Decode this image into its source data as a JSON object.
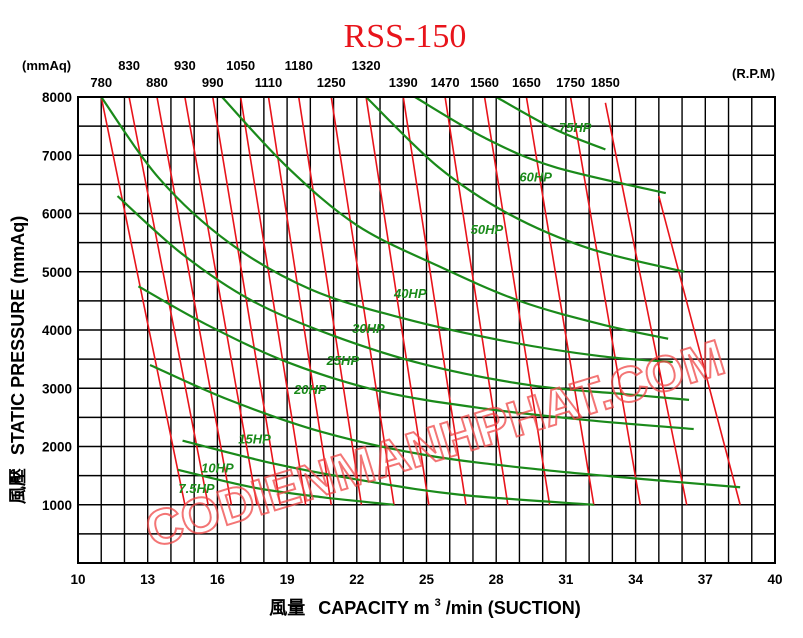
{
  "chart_data": {
    "type": "line",
    "title": "RSS-150",
    "xlabel": "風量 CAPACITY m³/min (SUCTION)",
    "xlabel_parts": {
      "cjk": "風量",
      "prefix": "CAPACITY  m",
      "sup": "3",
      "suffix": "/min (SUCTION)"
    },
    "ylabel": "風壓 STATIC PRESSURE (mmAq)",
    "ylabel_parts": {
      "cjk": "風壓",
      "text": "STATIC  PRESSURE  (mmAq)"
    },
    "y_unit_top": "(mmAq)",
    "rpm_unit": "(R.P.M)",
    "xlim": [
      10,
      40
    ],
    "ylim": [
      0,
      8000
    ],
    "x_ticks": [
      10,
      13,
      16,
      19,
      22,
      25,
      28,
      31,
      34,
      37,
      40
    ],
    "y_ticks": [
      1000,
      2000,
      3000,
      4000,
      5000,
      6000,
      7000,
      8000
    ],
    "grid": true,
    "rpm_series": [
      {
        "name": "780",
        "row": "lower",
        "points": [
          [
            11.0,
            8000
          ],
          [
            14.6,
            1000
          ]
        ]
      },
      {
        "name": "830",
        "row": "upper",
        "points": [
          [
            12.2,
            8000
          ],
          [
            15.6,
            1000
          ]
        ]
      },
      {
        "name": "880",
        "row": "lower",
        "points": [
          [
            13.4,
            8000
          ],
          [
            16.6,
            1000
          ]
        ]
      },
      {
        "name": "930",
        "row": "upper",
        "points": [
          [
            14.6,
            8000
          ],
          [
            17.7,
            1000
          ]
        ]
      },
      {
        "name": "990",
        "row": "lower",
        "points": [
          [
            15.8,
            8000
          ],
          [
            18.7,
            1000
          ]
        ]
      },
      {
        "name": "1050",
        "row": "upper",
        "points": [
          [
            17.0,
            8000
          ],
          [
            19.8,
            1000
          ]
        ]
      },
      {
        "name": "1110",
        "row": "lower",
        "points": [
          [
            18.2,
            8000
          ],
          [
            20.9,
            1000
          ]
        ]
      },
      {
        "name": "1180",
        "row": "upper",
        "points": [
          [
            19.5,
            8000
          ],
          [
            22.2,
            1000
          ]
        ]
      },
      {
        "name": "1250",
        "row": "lower",
        "points": [
          [
            20.9,
            8000
          ],
          [
            23.6,
            1000
          ]
        ]
      },
      {
        "name": "1320",
        "row": "upper",
        "points": [
          [
            22.4,
            8000
          ],
          [
            25.1,
            1000
          ]
        ]
      },
      {
        "name": "1390",
        "row": "lower",
        "points": [
          [
            24.0,
            8000
          ],
          [
            26.7,
            1000
          ]
        ]
      },
      {
        "name": "1470",
        "row": "lower",
        "points": [
          [
            25.8,
            8000
          ],
          [
            28.5,
            1000
          ]
        ]
      },
      {
        "name": "1560",
        "row": "lower",
        "points": [
          [
            27.5,
            8000
          ],
          [
            30.3,
            1000
          ]
        ]
      },
      {
        "name": "1650",
        "row": "lower",
        "points": [
          [
            29.3,
            8000
          ],
          [
            32.2,
            1000
          ]
        ]
      },
      {
        "name": "1750",
        "row": "lower",
        "points": [
          [
            31.2,
            8000
          ],
          [
            34.2,
            1000
          ]
        ]
      },
      {
        "name": "1850",
        "row": "lower",
        "points": [
          [
            32.7,
            7900
          ],
          [
            36.2,
            1000
          ]
        ]
      }
    ],
    "rpm_extra_lines": [
      {
        "points": [
          [
            35.0,
            6300
          ],
          [
            38.5,
            1000
          ]
        ]
      }
    ],
    "hp_series": [
      {
        "name": "7.5HP",
        "label_at": [
          15.1,
          1200
        ],
        "points": [
          [
            14.3,
            1600
          ],
          [
            17.5,
            1300
          ],
          [
            20.5,
            1130
          ],
          [
            23.6,
            1000
          ]
        ]
      },
      {
        "name": "10HP",
        "label_at": [
          16.0,
          1550
        ],
        "points": [
          [
            14.5,
            2100
          ],
          [
            18.5,
            1700
          ],
          [
            22.5,
            1400
          ],
          [
            26.5,
            1170
          ],
          [
            32.2,
            1000
          ]
        ]
      },
      {
        "name": "15HP",
        "label_at": [
          17.6,
          2050
        ],
        "points": [
          [
            13.1,
            3400
          ],
          [
            16.5,
            2800
          ],
          [
            20.5,
            2250
          ],
          [
            25.0,
            1850
          ],
          [
            30.0,
            1600
          ],
          [
            35.5,
            1400
          ],
          [
            38.5,
            1300
          ]
        ]
      },
      {
        "name": "20HP",
        "label_at": [
          20.0,
          2900
        ],
        "points": [
          [
            12.6,
            4750
          ],
          [
            15.5,
            4100
          ],
          [
            19.0,
            3450
          ],
          [
            23.0,
            2950
          ],
          [
            27.5,
            2650
          ],
          [
            32.0,
            2450
          ],
          [
            36.5,
            2300
          ]
        ]
      },
      {
        "name": "25HP",
        "label_at": [
          21.4,
          3400
        ],
        "points": [
          [
            11.7,
            6300
          ],
          [
            14.5,
            5300
          ],
          [
            17.5,
            4500
          ],
          [
            21.0,
            3900
          ],
          [
            25.0,
            3400
          ],
          [
            29.5,
            3050
          ],
          [
            33.5,
            2900
          ],
          [
            36.3,
            2800
          ]
        ]
      },
      {
        "name": "30HP",
        "label_at": [
          22.5,
          3950
        ],
        "points": [
          [
            11.0,
            8000
          ],
          [
            13.5,
            6600
          ],
          [
            16.5,
            5500
          ],
          [
            20.0,
            4700
          ],
          [
            24.0,
            4200
          ],
          [
            28.5,
            3800
          ],
          [
            32.5,
            3550
          ],
          [
            35.6,
            3450
          ]
        ]
      },
      {
        "name": "40HP",
        "label_at": [
          24.3,
          4550
        ],
        "points": [
          [
            16.2,
            8000
          ],
          [
            19.0,
            6800
          ],
          [
            22.0,
            5800
          ],
          [
            25.5,
            5100
          ],
          [
            29.0,
            4500
          ],
          [
            32.5,
            4100
          ],
          [
            35.4,
            3850
          ]
        ]
      },
      {
        "name": "50HP",
        "label_at": [
          27.6,
          5650
        ],
        "points": [
          [
            22.4,
            8000
          ],
          [
            25.5,
            6800
          ],
          [
            28.5,
            6000
          ],
          [
            32.0,
            5400
          ],
          [
            36.1,
            5000
          ]
        ]
      },
      {
        "name": "60HP",
        "label_at": [
          29.7,
          6550
        ],
        "points": [
          [
            24.5,
            8000
          ],
          [
            27.5,
            7300
          ],
          [
            30.5,
            6800
          ],
          [
            35.3,
            6350
          ]
        ]
      },
      {
        "name": "75HP",
        "label_at": [
          31.4,
          7400
        ],
        "points": [
          [
            28.0,
            8000
          ],
          [
            30.5,
            7450
          ],
          [
            32.7,
            7100
          ]
        ]
      }
    ]
  },
  "watermark": "CODIENMANHPHAT.COM"
}
